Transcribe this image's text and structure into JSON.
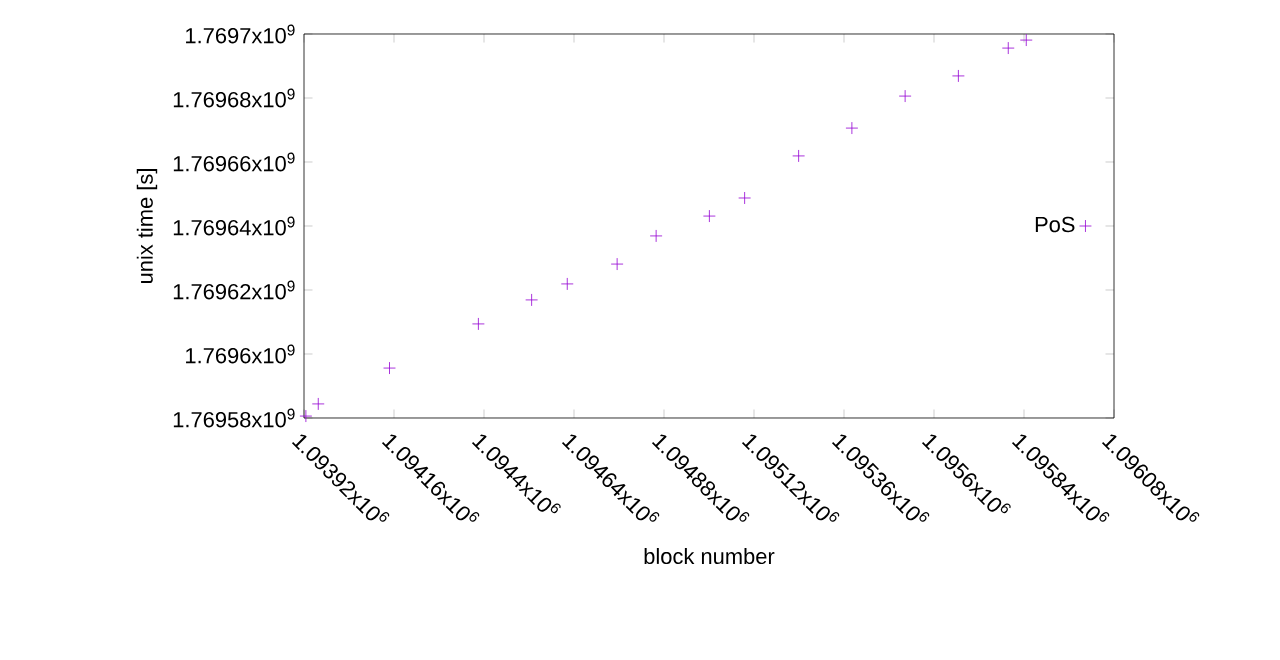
{
  "chart_data": {
    "type": "scatter",
    "xlabel": "block number",
    "ylabel": "unix time [s]",
    "marker": "cross",
    "legend": "right",
    "xlim": [
      1093920,
      1096080
    ],
    "ylim": [
      1769580000,
      1769700000
    ],
    "xticks": [
      {
        "value": 1093920,
        "label": "1.09392x10$^{6}$"
      },
      {
        "value": 1094160,
        "label": "1.09416x10$^{6}$"
      },
      {
        "value": 1094400,
        "label": "1.0944x10$^{6}$"
      },
      {
        "value": 1094640,
        "label": "1.09464x10$^{6}$"
      },
      {
        "value": 1094880,
        "label": "1.09488x10$^{6}$"
      },
      {
        "value": 1095120,
        "label": "1.09512x10$^{6}$"
      },
      {
        "value": 1095360,
        "label": "1.09536x10$^{6}$"
      },
      {
        "value": 1095600,
        "label": "1.0956x10$^{6}$"
      },
      {
        "value": 1095840,
        "label": "1.09584x10$^{6}$"
      },
      {
        "value": 1096080,
        "label": "1.09608x10$^{6}$"
      }
    ],
    "yticks": [
      {
        "value": 1769580000,
        "label": "1.76958x10$^{9}$"
      },
      {
        "value": 1769600000,
        "label": "1.7696x10$^{9}$"
      },
      {
        "value": 1769620000,
        "label": "1.76962x10$^{9}$"
      },
      {
        "value": 1769640000,
        "label": "1.76964x10$^{9}$"
      },
      {
        "value": 1769660000,
        "label": "1.76966x10$^{9}$"
      },
      {
        "value": 1769680000,
        "label": "1.76968x10$^{9}$"
      },
      {
        "value": 1769700000,
        "label": "1.7697x10$^{9}$"
      }
    ],
    "x": [
      1093925,
      1093958,
      1094148,
      1094385,
      1094527,
      1094622,
      1094755,
      1094859,
      1095001,
      1095095,
      1095239,
      1095381,
      1095523,
      1095665,
      1095798,
      1095846
    ],
    "series": [
      {
        "name": "PoS",
        "color": "#9400d3",
        "values": [
          1769580600,
          1769584400,
          1769595600,
          1769609400,
          1769616900,
          1769621900,
          1769628100,
          1769636900,
          1769643100,
          1769648750,
          1769661900,
          1769670600,
          1769680600,
          1769686900,
          1769695600,
          1769698100
        ]
      }
    ]
  }
}
